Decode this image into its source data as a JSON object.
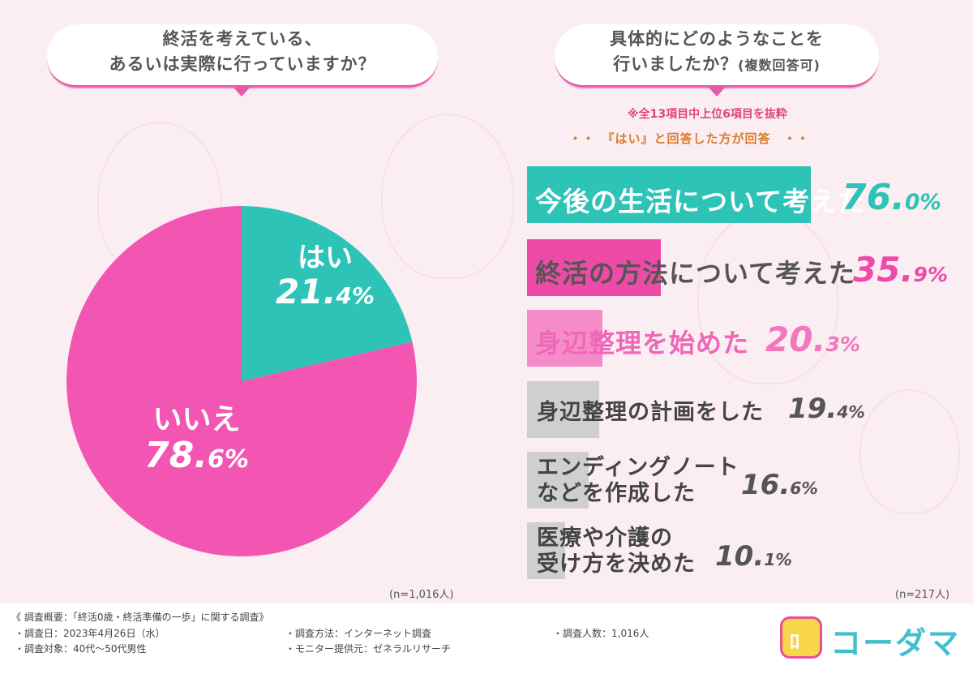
{
  "left_question": {
    "line1": "終活を考えている、",
    "line2": "あるいは実際に行っていますか？"
  },
  "right_question": {
    "line1": "具体的にどのようなことを",
    "line2": "行いましたか？",
    "line2_small": "(複数回答可)"
  },
  "notes": {
    "extract": "※全13項目中上位6項目を抜粋",
    "respondents": "・・　『はい』と回答した方が回答　・・"
  },
  "pie_n": "(n=1,016人)",
  "bar_n": "(n=217人)",
  "colors": {
    "yes": "#2dc3b7",
    "no": "#f256b2",
    "bar1": "#2dc3b7",
    "bar2": "#ee4aa8",
    "bar3": "#f58cc8",
    "gray": "#cfcfcf"
  },
  "chart_data": [
    {
      "type": "pie",
      "slices": [
        {
          "label": "はい",
          "value": 21.4,
          "display_main": "21.",
          "display_dec": "4%"
        },
        {
          "label": "いいえ",
          "value": 78.6,
          "display_main": "78.",
          "display_dec": "6%"
        }
      ]
    },
    {
      "type": "bar",
      "categories": [
        "今後の生活について考えた",
        "終活の方法について考えた",
        "身辺整理を始めた",
        "身辺整理の計画をした",
        "エンディングノートなどを作成した",
        "医療や介護の受け方を決めた"
      ],
      "values": [
        76.0,
        35.9,
        20.3,
        19.4,
        16.6,
        10.1
      ],
      "items": [
        {
          "label": "今後の生活について考えた",
          "value": 76.0,
          "main": "76.",
          "dec": "0%"
        },
        {
          "label": "終活の方法について考えた",
          "value": 35.9,
          "main": "35.",
          "dec": "9%"
        },
        {
          "label": "身辺整理を始めた",
          "value": 20.3,
          "main": "20.",
          "dec": "3%"
        },
        {
          "label": "身辺整理の計画をした",
          "value": 19.4,
          "main": "19.",
          "dec": "4%"
        },
        {
          "label_line1": "エンディングノート",
          "label_line2": "などを作成した",
          "value": 16.6,
          "main": "16.",
          "dec": "6%"
        },
        {
          "label_line1": "医療や介護の",
          "label_line2": "受け方を決めた",
          "value": 10.1,
          "main": "10.",
          "dec": "1%"
        }
      ]
    }
  ],
  "footer": {
    "overview": "《 調査概要：「終活0歳・終活準備の一歩」に関する調査》",
    "date": "・調査日：2023年4月26日（水）",
    "target": "・調査対象：40代～50代男性",
    "method": "・調査方法：インターネット調査",
    "provider": "・モニター提供元：ゼネラルリサーチ",
    "count": "・調査人数：1,016人",
    "logo_text": "コーダマ"
  }
}
